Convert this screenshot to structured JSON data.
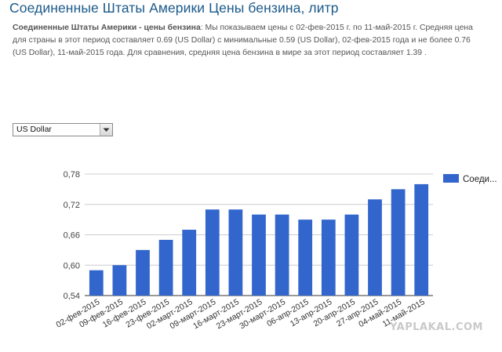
{
  "header": {
    "title": "Соединенные Штаты Америки Цены бензина, литр"
  },
  "description": {
    "bold_lead": "Соединенные Штаты Америки - цены бензина",
    "text": ": Мы показываем цены с 02-фев-2015 г. по 11-май-2015 г. Средняя цена для страны в этот период составляет 0.69 (US Dollar) с минимальные 0.59 (US Dollar), 02-фев-2015 года и не более 0.76 (US Dollar), 11-май-2015 года. Для сравнения, средняя цена бензина в мире за этот период составляет 1.39 ."
  },
  "currency_select": {
    "selected": "US Dollar",
    "icon": "chevron-down-icon"
  },
  "watermark": "YAPLAKAL.COM",
  "colors": {
    "bar": "#3366cc",
    "title": "#1b5a8a",
    "grid": "#cccccc"
  },
  "chart_data": {
    "type": "bar",
    "title": "",
    "xlabel": "",
    "ylabel": "",
    "ylim": [
      0.54,
      0.78
    ],
    "yticks": [
      "0,54",
      "0,60",
      "0,66",
      "0,72",
      "0,78"
    ],
    "ytick_values": [
      0.54,
      0.6,
      0.66,
      0.72,
      0.78
    ],
    "grid": true,
    "legend_position": "right",
    "categories": [
      "02-фев-2015",
      "09-фев-2015",
      "16-фев-2015",
      "23-фев-2015",
      "02-март-2015",
      "09-март-2015",
      "16-март-2015",
      "23-март-2015",
      "30-март-2015",
      "06-апр-2015",
      "13-апр-2015",
      "20-апр-2015",
      "27-апр-2015",
      "04-май-2015",
      "11-май-2015"
    ],
    "series": [
      {
        "name": "Соеди...",
        "values": [
          0.59,
          0.6,
          0.63,
          0.65,
          0.67,
          0.71,
          0.71,
          0.7,
          0.7,
          0.69,
          0.69,
          0.7,
          0.73,
          0.75,
          0.76
        ]
      }
    ]
  }
}
